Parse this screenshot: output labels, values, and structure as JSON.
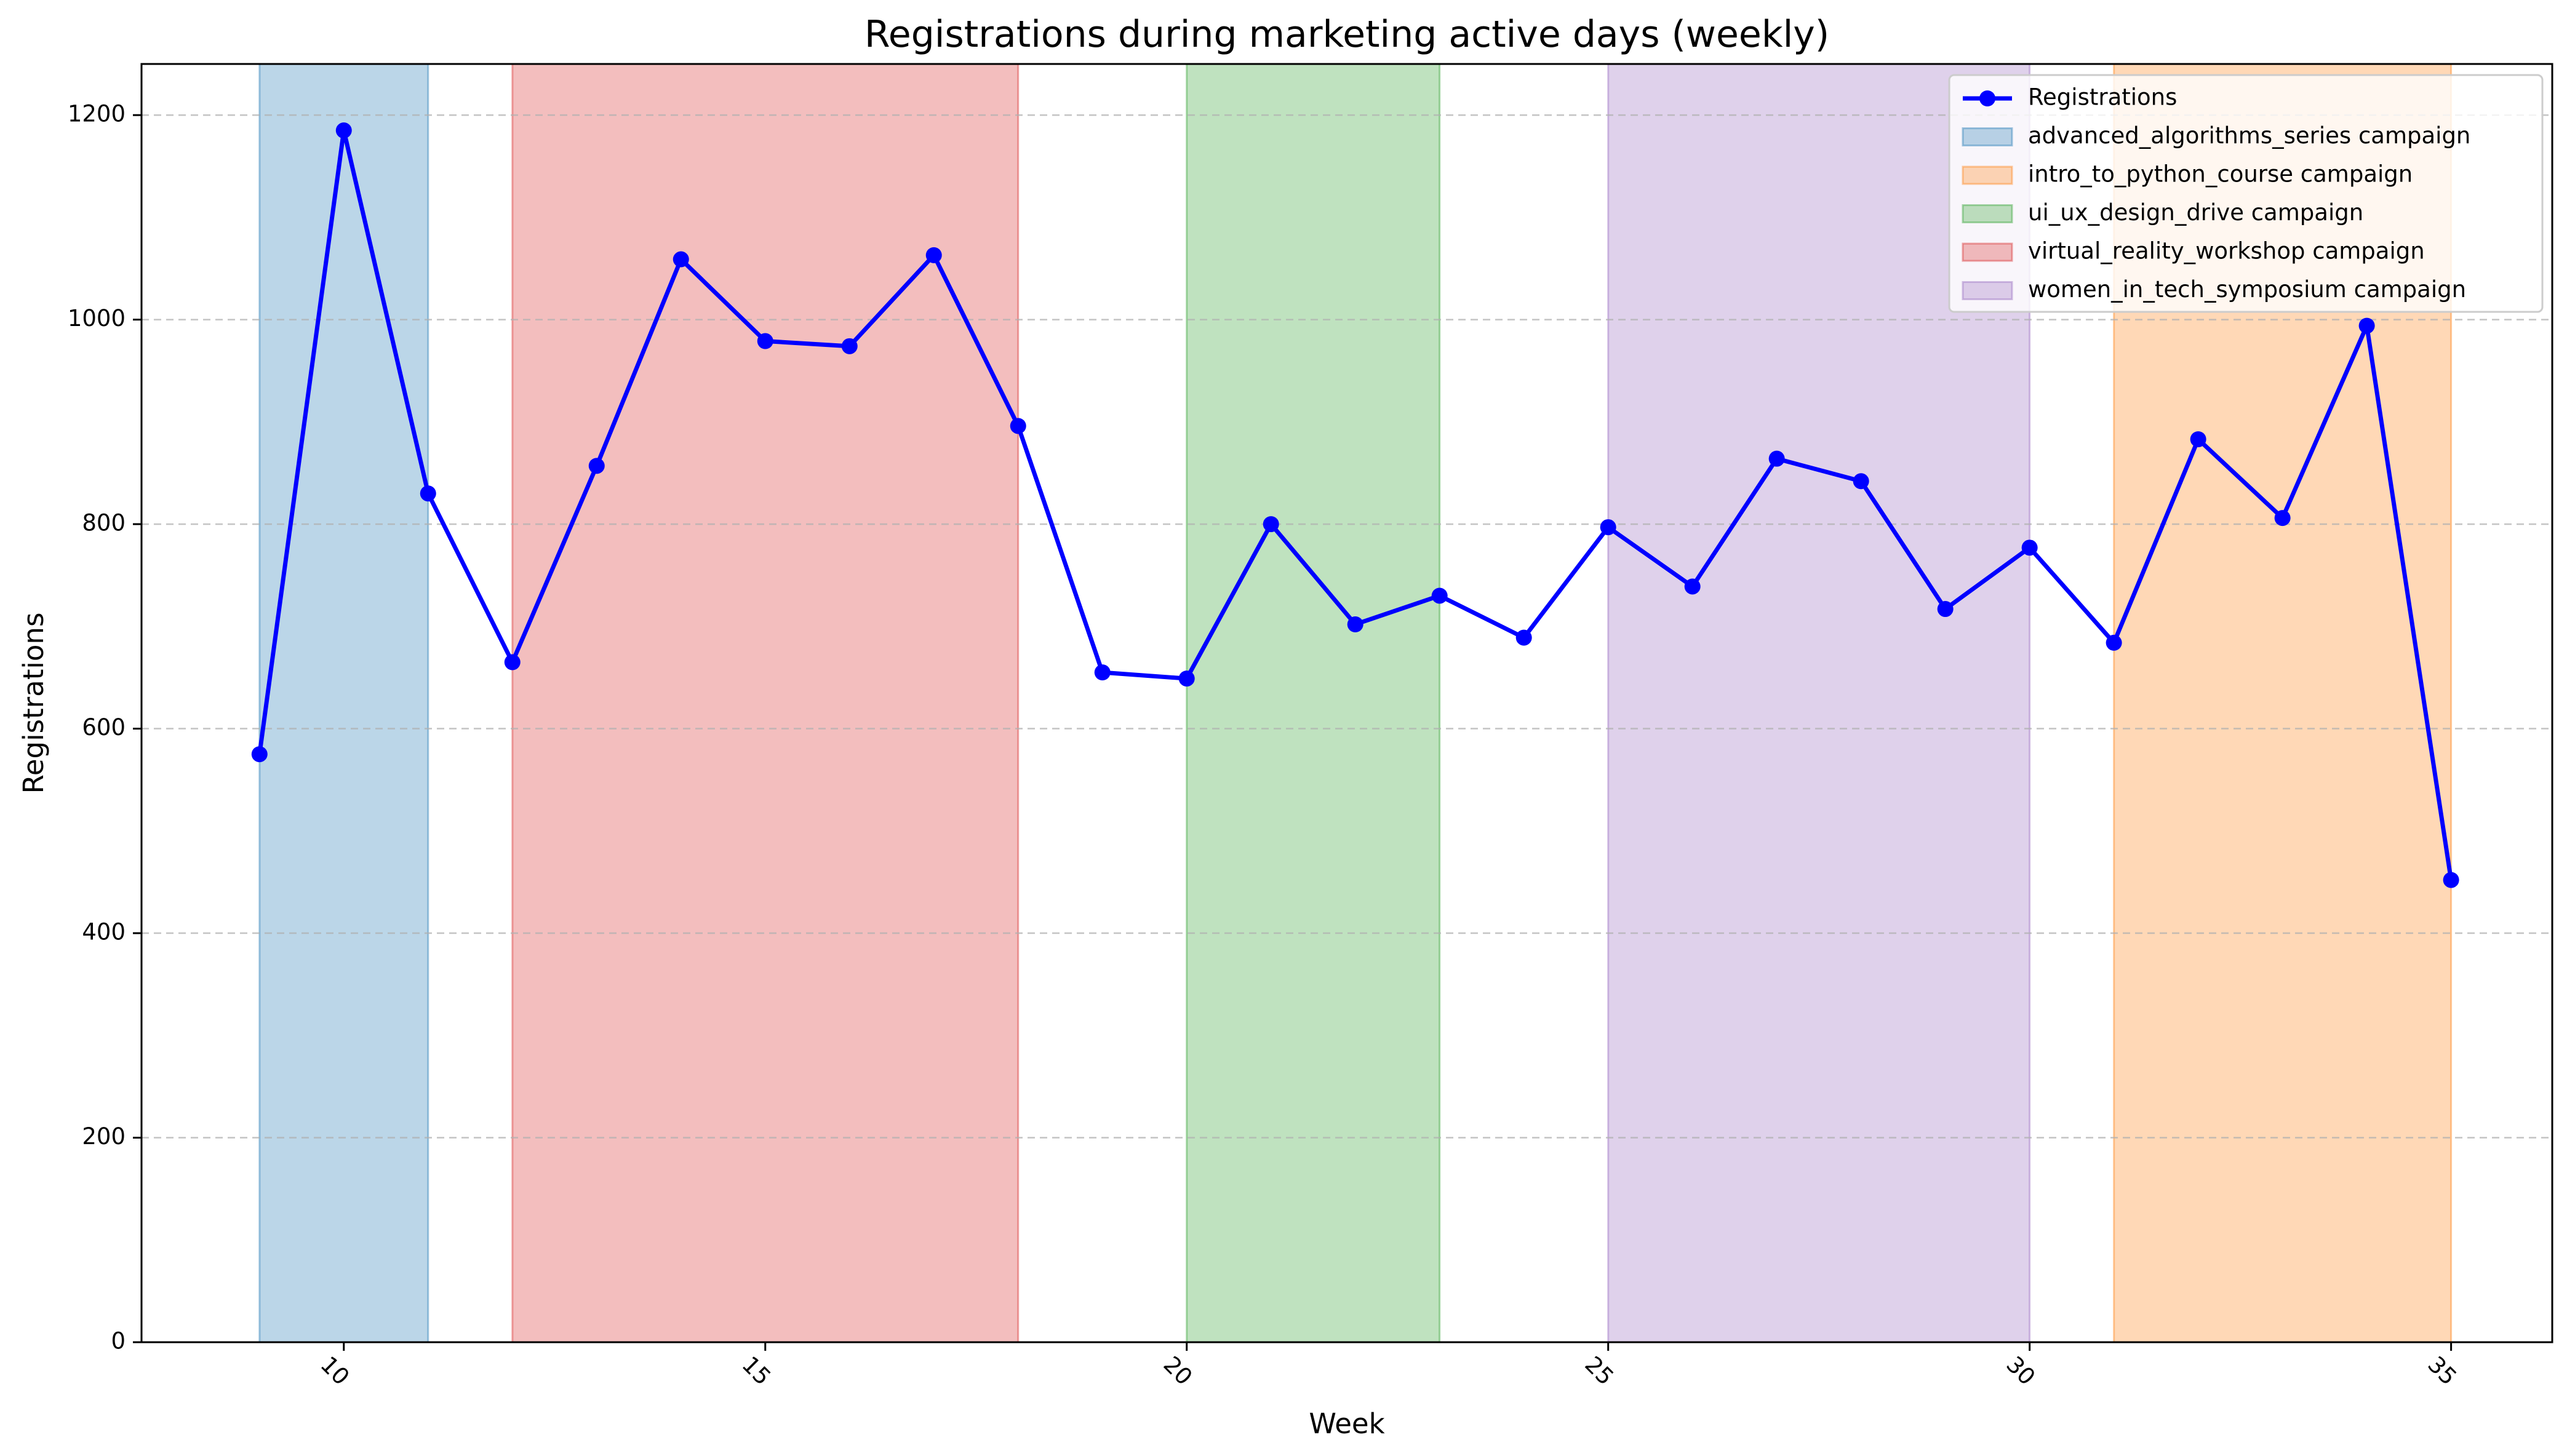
{
  "chart_data": {
    "type": "line",
    "title": "Registrations during marketing active days (weekly)",
    "xlabel": "Week",
    "ylabel": "Registrations",
    "xlim": [
      7.6,
      36.2
    ],
    "ylim": [
      0,
      1250
    ],
    "grid": "y-dashed",
    "legend_position": "top-right",
    "xticks": [
      10,
      15,
      20,
      25,
      30,
      35
    ],
    "yticks": [
      0,
      200,
      400,
      600,
      800,
      1000,
      1200
    ],
    "series": [
      {
        "name": "Registrations",
        "color": "#0000ff",
        "x": [
          9,
          10,
          11,
          12,
          13,
          14,
          15,
          16,
          17,
          18,
          19,
          20,
          21,
          22,
          23,
          24,
          25,
          26,
          27,
          28,
          29,
          30,
          31,
          32,
          33,
          34,
          35
        ],
        "y": [
          575,
          1185,
          830,
          665,
          857,
          1059,
          979,
          974,
          1063,
          896,
          655,
          649,
          800,
          702,
          730,
          689,
          797,
          739,
          864,
          842,
          717,
          777,
          684,
          883,
          806,
          994,
          452
        ]
      }
    ],
    "campaigns": [
      {
        "name": "advanced_algorithms_series campaign",
        "start": 9,
        "end": 11,
        "color": "#1f77b4"
      },
      {
        "name": "intro_to_python_course campaign",
        "start": 31,
        "end": 35,
        "color": "#ff7f0e"
      },
      {
        "name": "ui_ux_design_drive campaign",
        "start": 20,
        "end": 23,
        "color": "#2ca02c"
      },
      {
        "name": "virtual_reality_workshop campaign",
        "start": 12,
        "end": 18,
        "color": "#d62728"
      },
      {
        "name": "women_in_tech_symposium campaign",
        "start": 25,
        "end": 30,
        "color": "#9467bd"
      }
    ]
  }
}
